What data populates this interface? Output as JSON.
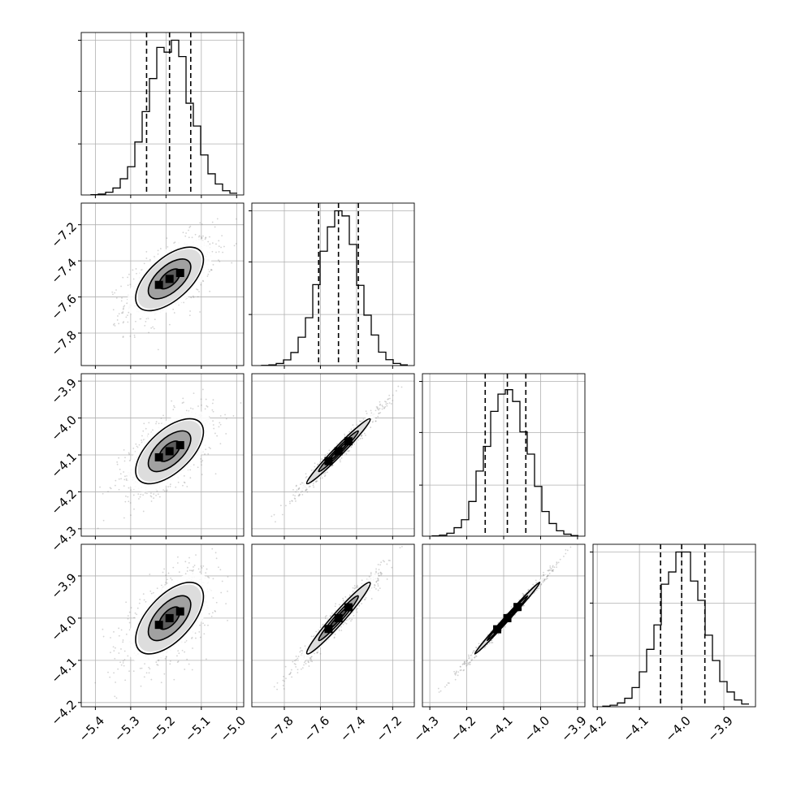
{
  "chart_data": {
    "type": "corner",
    "parameters": [
      {
        "index": 0,
        "median": -5.19,
        "q16": -5.255,
        "q84": -5.13,
        "sigma": 0.06,
        "range": [
          -5.44,
          -4.98
        ],
        "ticks": [
          {
            "v": -5.4,
            "label": "−5.4"
          },
          {
            "v": -5.3,
            "label": "−5.3"
          },
          {
            "v": -5.2,
            "label": "−5.2"
          },
          {
            "v": -5.1,
            "label": "−5.1"
          },
          {
            "v": -5.0,
            "label": "−5.0"
          }
        ]
      },
      {
        "index": 1,
        "median": -7.5,
        "q16": -7.61,
        "q84": -7.39,
        "sigma": 0.11,
        "range": [
          -7.98,
          -7.08
        ],
        "ticks": [
          {
            "v": -7.8,
            "label": "−7.8"
          },
          {
            "v": -7.6,
            "label": "−7.6"
          },
          {
            "v": -7.4,
            "label": "−7.4"
          },
          {
            "v": -7.2,
            "label": "−7.2"
          }
        ]
      },
      {
        "index": 2,
        "median": -4.09,
        "q16": -4.15,
        "q84": -4.04,
        "sigma": 0.055,
        "range": [
          -4.32,
          -3.88
        ],
        "ticks": [
          {
            "v": -4.3,
            "label": "−4.3"
          },
          {
            "v": -4.2,
            "label": "−4.2"
          },
          {
            "v": -4.1,
            "label": "−4.1"
          },
          {
            "v": -4.0,
            "label": "−4.0"
          },
          {
            "v": -3.9,
            "label": "−3.9"
          }
        ]
      },
      {
        "index": 3,
        "median": -4.0,
        "q16": -4.05,
        "q84": -3.945,
        "sigma": 0.053,
        "range": [
          -4.21,
          -3.825
        ],
        "ticks": [
          {
            "v": -4.2,
            "label": "−4.2"
          },
          {
            "v": -4.1,
            "label": "−4.1"
          },
          {
            "v": -4.0,
            "label": "−4.0"
          },
          {
            "v": -3.9,
            "label": "−3.9"
          }
        ]
      }
    ],
    "correlations": [
      [
        1,
        0.6,
        0.6,
        0.6
      ],
      [
        0.6,
        1,
        0.98,
        0.97
      ],
      [
        0.6,
        0.98,
        1,
        0.995
      ],
      [
        0.6,
        0.97,
        0.995,
        1
      ]
    ],
    "histogram_bins": 20,
    "histogram_ylim": [
      0,
      1.05
    ],
    "histogram_gridlines": [
      0.33,
      0.67,
      1.0
    ],
    "grid": true,
    "quantiles": [
      0.16,
      0.5,
      0.84
    ],
    "contour_levels_sigma": [
      0.5,
      1.0,
      1.5,
      2.0
    ],
    "colors": {
      "line": "#000000",
      "points": "#808080",
      "grid": "#b0b0b0",
      "background": "#ffffff"
    }
  }
}
